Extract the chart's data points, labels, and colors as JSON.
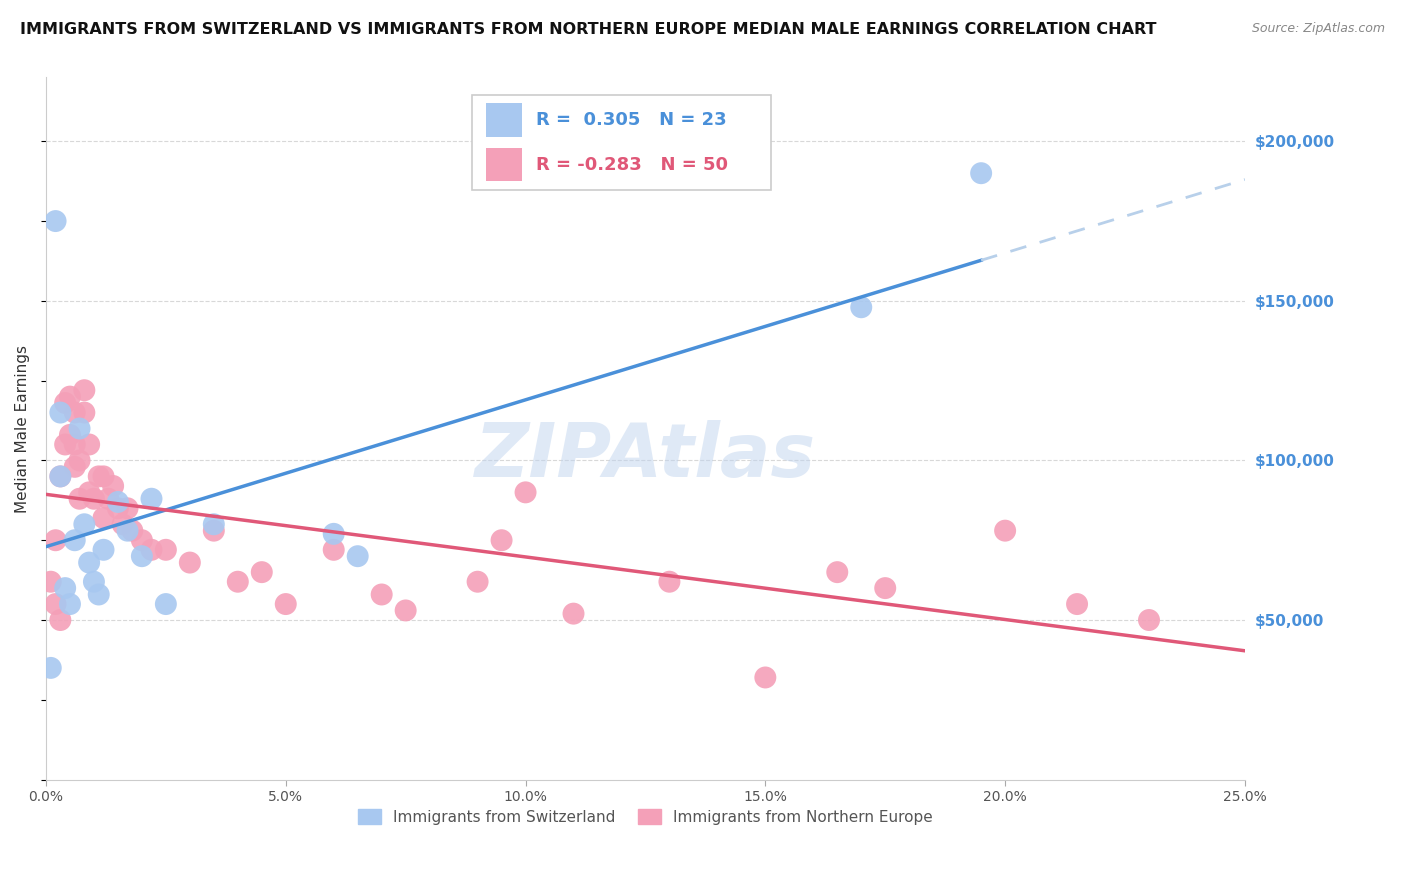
{
  "title": "IMMIGRANTS FROM SWITZERLAND VS IMMIGRANTS FROM NORTHERN EUROPE MEDIAN MALE EARNINGS CORRELATION CHART",
  "source": "Source: ZipAtlas.com",
  "ylabel": "Median Male Earnings",
  "legend_label1": "Immigrants from Switzerland",
  "legend_label2": "Immigrants from Northern Europe",
  "r1": 0.305,
  "n1": 23,
  "r2": -0.283,
  "n2": 50,
  "color1": "#a8c8f0",
  "color2": "#f4a0b8",
  "line_color1": "#4a90d9",
  "line_color2": "#e05878",
  "line_color1_dash": "#b8d0ea",
  "ytick_color": "#4a90d9",
  "background": "#ffffff",
  "grid_color": "#d8d8d8",
  "watermark": "ZIPAtlas",
  "xlim": [
    0.0,
    0.25
  ],
  "ylim": [
    0,
    220000
  ],
  "yticks": [
    50000,
    100000,
    150000,
    200000
  ],
  "ytick_labels": [
    "$50,000",
    "$100,000",
    "$150,000",
    "$200,000"
  ],
  "swiss_x": [
    0.001,
    0.002,
    0.003,
    0.003,
    0.004,
    0.005,
    0.006,
    0.007,
    0.008,
    0.009,
    0.01,
    0.011,
    0.012,
    0.015,
    0.017,
    0.02,
    0.022,
    0.025,
    0.035,
    0.06,
    0.065,
    0.17,
    0.195
  ],
  "swiss_y": [
    35000,
    175000,
    115000,
    95000,
    60000,
    55000,
    75000,
    110000,
    80000,
    68000,
    62000,
    58000,
    72000,
    87000,
    78000,
    70000,
    88000,
    55000,
    80000,
    77000,
    70000,
    148000,
    190000
  ],
  "northern_x": [
    0.001,
    0.002,
    0.002,
    0.003,
    0.003,
    0.004,
    0.004,
    0.005,
    0.005,
    0.006,
    0.006,
    0.006,
    0.007,
    0.007,
    0.008,
    0.008,
    0.009,
    0.009,
    0.01,
    0.011,
    0.012,
    0.012,
    0.013,
    0.014,
    0.015,
    0.016,
    0.017,
    0.018,
    0.02,
    0.022,
    0.025,
    0.03,
    0.035,
    0.04,
    0.045,
    0.05,
    0.06,
    0.07,
    0.075,
    0.09,
    0.095,
    0.1,
    0.11,
    0.13,
    0.15,
    0.165,
    0.175,
    0.2,
    0.215,
    0.23
  ],
  "northern_y": [
    62000,
    55000,
    75000,
    50000,
    95000,
    105000,
    118000,
    108000,
    120000,
    98000,
    105000,
    115000,
    88000,
    100000,
    115000,
    122000,
    90000,
    105000,
    88000,
    95000,
    82000,
    95000,
    88000,
    92000,
    85000,
    80000,
    85000,
    78000,
    75000,
    72000,
    72000,
    68000,
    78000,
    62000,
    65000,
    55000,
    72000,
    58000,
    53000,
    62000,
    75000,
    90000,
    52000,
    62000,
    32000,
    65000,
    60000,
    78000,
    55000,
    50000
  ],
  "title_fontsize": 11.5,
  "source_fontsize": 9,
  "axis_label_fontsize": 11,
  "tick_fontsize": 10,
  "legend_fontsize": 13
}
